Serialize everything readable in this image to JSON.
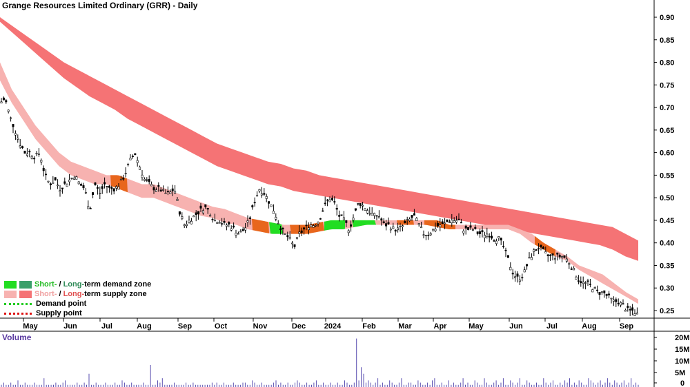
{
  "chart_data": {
    "type": "line",
    "title": "Grange Resources Limited Ordinary (GRR) - Daily",
    "volume_label": "Volume",
    "price_ticks": [
      "0.90",
      "0.85",
      "0.80",
      "0.75",
      "0.70",
      "0.65",
      "0.60",
      "0.55",
      "0.50",
      "0.45",
      "0.40",
      "0.35",
      "0.30",
      "0.25"
    ],
    "volume_ticks": [
      "20M",
      "15M",
      "10M",
      "5M",
      "0"
    ],
    "month_labels": [
      "May",
      "Jun",
      "Jul",
      "Aug",
      "Sep",
      "Oct",
      "Nov",
      "Dec",
      "2024",
      "Feb",
      "Mar",
      "Apr",
      "May",
      "Jun",
      "Jul",
      "Aug",
      "Sep"
    ],
    "ylim": [
      0.22,
      0.93
    ],
    "price_path": [
      0.71,
      0.72,
      0.68,
      0.65,
      0.62,
      0.6,
      0.6,
      0.59,
      0.6,
      0.55,
      0.53,
      0.54,
      0.52,
      0.53,
      0.54,
      0.55,
      0.53,
      0.52,
      0.47,
      0.53,
      0.51,
      0.53,
      0.52,
      0.52,
      0.53,
      0.55,
      0.58,
      0.6,
      0.57,
      0.54,
      0.53,
      0.52,
      0.52,
      0.51,
      0.51,
      0.52,
      0.47,
      0.44,
      0.45,
      0.46,
      0.47,
      0.48,
      0.47,
      0.45,
      0.45,
      0.44,
      0.44,
      0.43,
      0.42,
      0.43,
      0.45,
      0.49,
      0.52,
      0.51,
      0.49,
      0.47,
      0.44,
      0.42,
      0.41,
      0.39,
      0.42,
      0.43,
      0.44,
      0.44,
      0.45,
      0.48,
      0.5,
      0.49,
      0.46,
      0.45,
      0.43,
      0.46,
      0.49,
      0.48,
      0.47,
      0.46,
      0.46,
      0.44,
      0.44,
      0.43,
      0.43,
      0.44,
      0.45,
      0.46,
      0.44,
      0.42,
      0.42,
      0.43,
      0.44,
      0.44,
      0.45,
      0.45,
      0.45,
      0.43,
      0.43,
      0.43,
      0.42,
      0.42,
      0.42,
      0.41,
      0.41,
      0.39,
      0.36,
      0.33,
      0.32,
      0.33,
      0.36,
      0.38,
      0.39,
      0.38,
      0.37,
      0.37,
      0.37,
      0.37,
      0.36,
      0.34,
      0.32,
      0.31,
      0.31,
      0.3,
      0.29,
      0.29,
      0.28,
      0.27,
      0.27,
      0.26,
      0.25,
      0.25,
      0.24
    ],
    "short_zone": {
      "upper": [
        0.8,
        0.74,
        0.7,
        0.66,
        0.63,
        0.6,
        0.58,
        0.57,
        0.56,
        0.55,
        0.55,
        0.54,
        0.53,
        0.53,
        0.52,
        0.51,
        0.5,
        0.49,
        0.48,
        0.475,
        0.465,
        0.455,
        0.45,
        0.445,
        0.44,
        0.44,
        0.44,
        0.445,
        0.45,
        0.45,
        0.45,
        0.45,
        0.45,
        0.45,
        0.45,
        0.45,
        0.45,
        0.45,
        0.44,
        0.44,
        0.44,
        0.44,
        0.44,
        0.44,
        0.43,
        0.42,
        0.4,
        0.385,
        0.37,
        0.35,
        0.34,
        0.33,
        0.31,
        0.29,
        0.275
      ],
      "lower": [
        0.76,
        0.71,
        0.67,
        0.63,
        0.6,
        0.57,
        0.55,
        0.54,
        0.53,
        0.53,
        0.52,
        0.51,
        0.5,
        0.5,
        0.49,
        0.48,
        0.47,
        0.46,
        0.455,
        0.445,
        0.44,
        0.43,
        0.425,
        0.42,
        0.42,
        0.42,
        0.42,
        0.425,
        0.43,
        0.43,
        0.435,
        0.44,
        0.44,
        0.44,
        0.44,
        0.44,
        0.44,
        0.435,
        0.43,
        0.43,
        0.43,
        0.43,
        0.43,
        0.43,
        0.42,
        0.4,
        0.385,
        0.37,
        0.36,
        0.34,
        0.325,
        0.31,
        0.295,
        0.28,
        0.265
      ]
    },
    "long_zone": {
      "upper": [
        0.9,
        0.88,
        0.86,
        0.84,
        0.82,
        0.8,
        0.785,
        0.77,
        0.755,
        0.74,
        0.725,
        0.71,
        0.695,
        0.68,
        0.665,
        0.65,
        0.635,
        0.62,
        0.61,
        0.6,
        0.59,
        0.58,
        0.575,
        0.565,
        0.56,
        0.55,
        0.545,
        0.54,
        0.535,
        0.53,
        0.525,
        0.52,
        0.515,
        0.51,
        0.505,
        0.5,
        0.495,
        0.49,
        0.485,
        0.48,
        0.475,
        0.47,
        0.465,
        0.46,
        0.455,
        0.45,
        0.445,
        0.44,
        0.435,
        0.42,
        0.405
      ],
      "lower": [
        0.89,
        0.865,
        0.84,
        0.815,
        0.79,
        0.765,
        0.745,
        0.725,
        0.71,
        0.695,
        0.675,
        0.66,
        0.645,
        0.63,
        0.615,
        0.6,
        0.585,
        0.57,
        0.56,
        0.55,
        0.54,
        0.53,
        0.525,
        0.515,
        0.51,
        0.505,
        0.5,
        0.495,
        0.49,
        0.485,
        0.48,
        0.475,
        0.47,
        0.465,
        0.46,
        0.455,
        0.45,
        0.445,
        0.44,
        0.435,
        0.43,
        0.425,
        0.42,
        0.415,
        0.41,
        0.405,
        0.4,
        0.395,
        0.385,
        0.37,
        0.36
      ]
    },
    "volume_millions": [
      1,
      2,
      1,
      1,
      2,
      1,
      1,
      3,
      1,
      1,
      2,
      1,
      1,
      1,
      2,
      1,
      1,
      1,
      4,
      1,
      1,
      1,
      1,
      2,
      1,
      1,
      2,
      3,
      1,
      1,
      1,
      1,
      2,
      1,
      1,
      2,
      1,
      6,
      1,
      1,
      2,
      1,
      1,
      1,
      2,
      1,
      1,
      1,
      2,
      1,
      1,
      3,
      2,
      1,
      1,
      2,
      1,
      1,
      1,
      1,
      2,
      1,
      1,
      10,
      1,
      1,
      3,
      2,
      4,
      1,
      1,
      1,
      1,
      2,
      1,
      1,
      1,
      1,
      2,
      1,
      1,
      2,
      1,
      1,
      1,
      1,
      1,
      1,
      1,
      2,
      1,
      2,
      1,
      1,
      2,
      1,
      1,
      1,
      2,
      1,
      1,
      1,
      2,
      2,
      1,
      1,
      3,
      2,
      1,
      1,
      2,
      1,
      1,
      1,
      1,
      2,
      3,
      1,
      2,
      1,
      1,
      2,
      1,
      1,
      2,
      3,
      2,
      1,
      1,
      2,
      1,
      1,
      2,
      3,
      1,
      1,
      2,
      1,
      1,
      2,
      1,
      1,
      2,
      1,
      1,
      3,
      2,
      1,
      1,
      2,
      22,
      3,
      9,
      6,
      2,
      3,
      2,
      1,
      2,
      4,
      1,
      2,
      1,
      1,
      3,
      2,
      1,
      1,
      2,
      4,
      1,
      1,
      2,
      2,
      1,
      1,
      3,
      2,
      1,
      1,
      2,
      1,
      3,
      4,
      1,
      1,
      2,
      1,
      1,
      3,
      1,
      2,
      1,
      1,
      2,
      4,
      1,
      2,
      1,
      1,
      3,
      2,
      1,
      1,
      4,
      2,
      1,
      1,
      2,
      3,
      1,
      2,
      4,
      1,
      1,
      3,
      2,
      1,
      2,
      4,
      1,
      1,
      3,
      2,
      1,
      1,
      2,
      1,
      1,
      4,
      2,
      1,
      2,
      3,
      1,
      1,
      2,
      1,
      3,
      2,
      4,
      1,
      2,
      1,
      3,
      2,
      1,
      1,
      4,
      3,
      2,
      1,
      2,
      3,
      1,
      2,
      4,
      2,
      1,
      3,
      2,
      1,
      2,
      3,
      1,
      2,
      4,
      1,
      2,
      1
    ]
  },
  "legend": {
    "demand_short": "Short-",
    "demand_sep": " / ",
    "demand_long": "Long-",
    "demand_rest": "term demand zone",
    "supply_short": "Short-",
    "supply_sep": " / ",
    "supply_long": "Long-",
    "supply_rest": "term supply zone",
    "demand_point": "Demand point",
    "supply_point": "Supply point"
  },
  "colors": {
    "short_supply": "#f7b2b0",
    "long_supply": "#f57375",
    "short_demand": "#22dd22",
    "long_demand": "#3aa06a",
    "demand_point": "#22cc22",
    "supply_point": "#dd1111",
    "volume_bar": "#5a4fb0",
    "volume_label": "#5a3aa0",
    "crossover_orange": "#e8661c"
  }
}
